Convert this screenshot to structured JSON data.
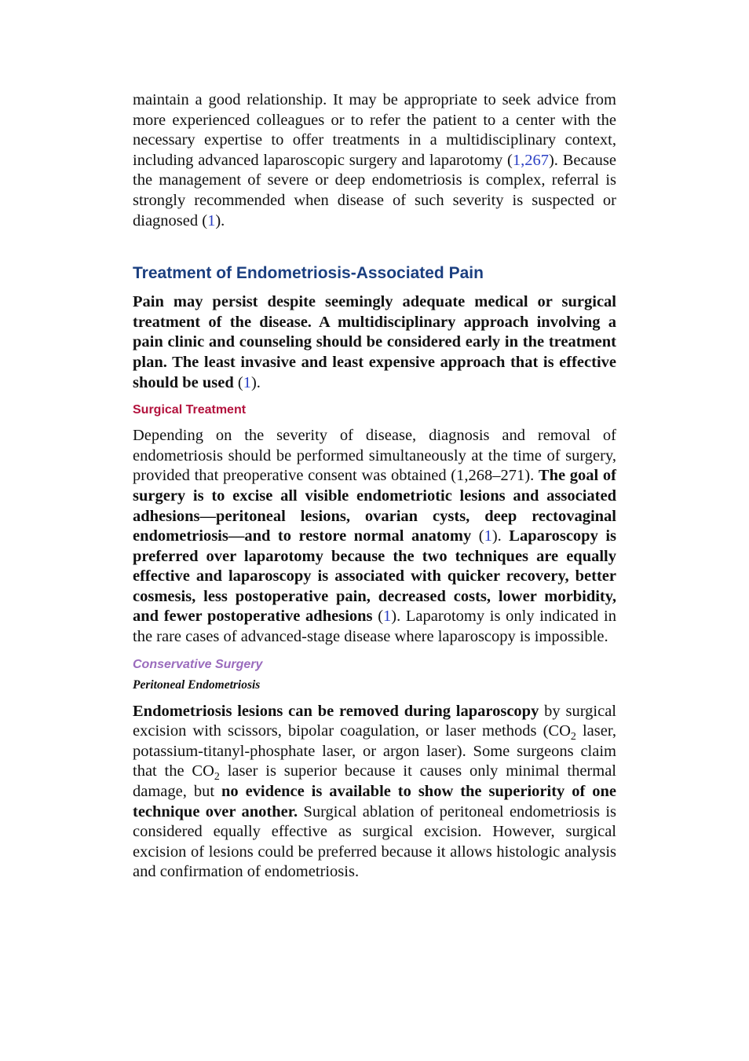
{
  "paragraphs": [
    [
      "maintain a good relationship. It may be appropriate to seek advice from more experienced colleagues or to refer the patient to a center with the necessary expertise to offer treatments in a multidisciplinary context, including advanced laparoscopic surgery and laparotomy (",
      "1,267",
      "). Because the management of severe or deep endometriosis is complex, referral is strongly recommended when disease of such severity is suspected or diagnosed (",
      "1",
      ")."
    ],
    [
      "Pain may persist despite seemingly adequate medical or surgical treatment of the disease. A multidisciplinary approach involving a pain clinic and counseling should be considered early in the treatment plan. The least invasive and least expensive approach that is effective should be used",
      " (",
      "1",
      ")."
    ],
    [
      "Depending on the severity of disease, diagnosis and removal of endometriosis should be performed simultaneously at the time of surgery, provided that preoperative consent was obtained (1,268–271). ",
      "The goal of surgery is to excise all visible endometriotic lesions and associated adhesions—peritoneal lesions, ovarian cysts, deep rectovaginal endometriosis—and to restore normal anatomy",
      " (",
      "1",
      "). ",
      "Laparoscopy is preferred over laparotomy because the two techniques are equally effective and laparoscopy is associated with quicker recovery, better cosmesis, less postoperative pain, decreased costs, lower morbidity, and fewer postoperative adhesions",
      " (",
      "1",
      "). Laparotomy is only indicated in the rare cases of advanced-stage disease where laparoscopy is impossible."
    ],
    [
      "Endometriosis lesions can be removed during laparoscopy",
      " by surgical excision with scissors, bipolar coagulation, or laser methods (CO",
      "2",
      " laser, potassium-titanyl-phosphate laser, or argon laser). Some surgeons claim that the CO",
      "2",
      " laser is superior because it causes only minimal thermal damage, but ",
      "no evidence is available to show the superiority of one technique over another.",
      " Surgical ablation of peritoneal endometriosis is considered equally effective as surgical excision. However, surgical excision of lesions could be preferred because it allows histologic analysis and confirmation of endometriosis."
    ]
  ],
  "headings": [
    "Treatment of Endometriosis-Associated Pain",
    "Surgical Treatment",
    "Conservative Surgery",
    "Peritoneal Endometriosis"
  ]
}
